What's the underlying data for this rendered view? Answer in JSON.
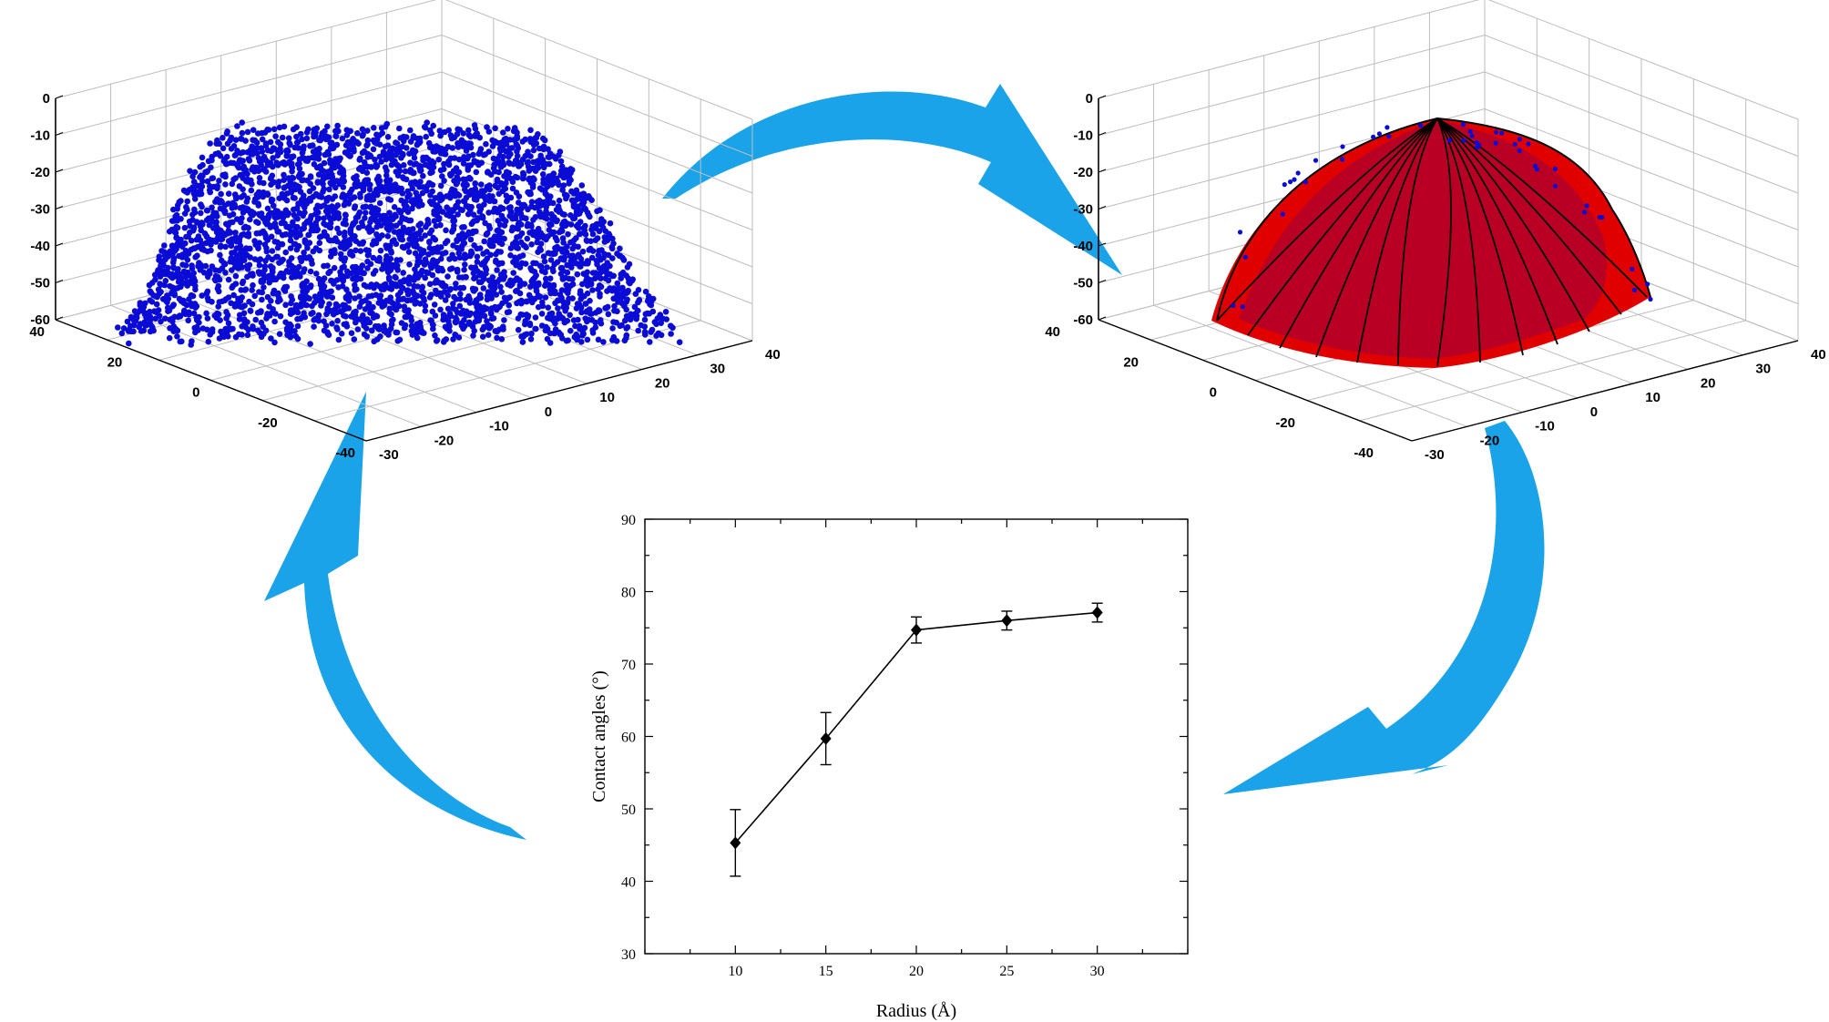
{
  "colors": {
    "arrow": "#1aa3e8",
    "scatter_points": "#0b0bd6",
    "cap_fill": "#e00000",
    "cap_dark": "#b2002a",
    "grid": "#bdbdbd",
    "line": "#000000"
  },
  "panels": {
    "scatter3d": {
      "type": "scatter",
      "z_ticks": [
        "0",
        "-10",
        "-20",
        "-30",
        "-40",
        "-50",
        "-60"
      ],
      "y_ticks": [
        "40",
        "20",
        "0",
        "-20",
        "-40"
      ],
      "x_ticks": [
        "-30",
        "-20",
        "-10",
        "0",
        "10",
        "20",
        "30",
        "40"
      ]
    },
    "cap3d": {
      "type": "surface",
      "z_ticks": [
        "0",
        "-10",
        "-20",
        "-30",
        "-40",
        "-50",
        "-60"
      ],
      "y_ticks": [
        "40",
        "20",
        "0",
        "-20",
        "-40"
      ],
      "x_ticks": [
        "-30",
        "-20",
        "-10",
        "0",
        "10",
        "20",
        "30",
        "40"
      ]
    }
  },
  "chart_data": {
    "type": "line",
    "x": [
      10,
      15,
      20,
      25,
      30
    ],
    "values": [
      45.3,
      59.7,
      74.7,
      76.0,
      77.1
    ],
    "errors": [
      4.6,
      3.6,
      1.8,
      1.3,
      1.3
    ],
    "xlabel": "Radius (Å)",
    "ylabel": "Contact angles (°)",
    "xlim": [
      5,
      35
    ],
    "ylim": [
      30,
      90
    ],
    "x_ticks": [
      "10",
      "15",
      "20",
      "25",
      "30"
    ],
    "y_ticks": [
      "30",
      "40",
      "50",
      "60",
      "70",
      "80",
      "90"
    ],
    "marker": "diamond",
    "grid": false
  }
}
